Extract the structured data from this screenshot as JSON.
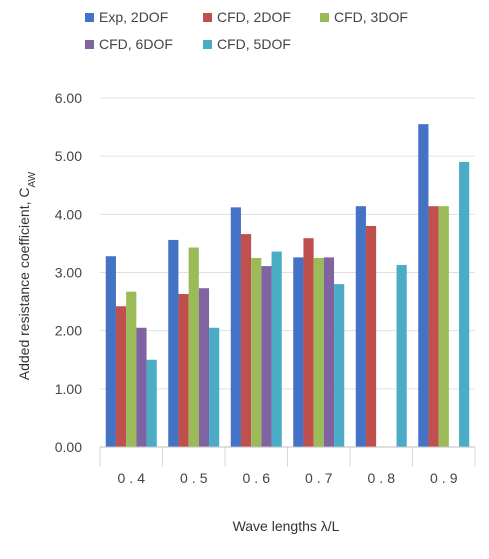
{
  "chart_data": {
    "type": "bar",
    "categories": [
      "0.4",
      "0.5",
      "0.6",
      "0.7",
      "0.8",
      "0.9"
    ],
    "series": [
      {
        "name": "Exp, 2DOF",
        "color": "#4472C4",
        "values": [
          3.28,
          3.56,
          4.12,
          3.26,
          4.14,
          5.55
        ]
      },
      {
        "name": "CFD, 2DOF",
        "color": "#C0504D",
        "values": [
          2.42,
          2.63,
          3.66,
          3.59,
          3.8,
          4.14
        ]
      },
      {
        "name": "CFD, 3DOF",
        "color": "#9BBB59",
        "values": [
          2.67,
          3.43,
          3.25,
          3.25,
          null,
          4.14
        ]
      },
      {
        "name": "CFD, 6DOF",
        "color": "#8064A2",
        "values": [
          2.05,
          2.73,
          3.11,
          3.26,
          null,
          null
        ]
      },
      {
        "name": "CFD, 5DOF",
        "color": "#4BACC6",
        "values": [
          1.5,
          2.05,
          3.36,
          2.8,
          3.13,
          4.9
        ]
      }
    ],
    "ylim": [
      0,
      6
    ],
    "yticks": [
      "0.00",
      "1.00",
      "2.00",
      "3.00",
      "4.00",
      "5.00",
      "6.00"
    ],
    "ylabel_main": "Added resistance  coefficient, C",
    "ylabel_sub": "AW",
    "xlabel": "Wave lengths λ/L",
    "grid": true,
    "legend_position": "top"
  }
}
